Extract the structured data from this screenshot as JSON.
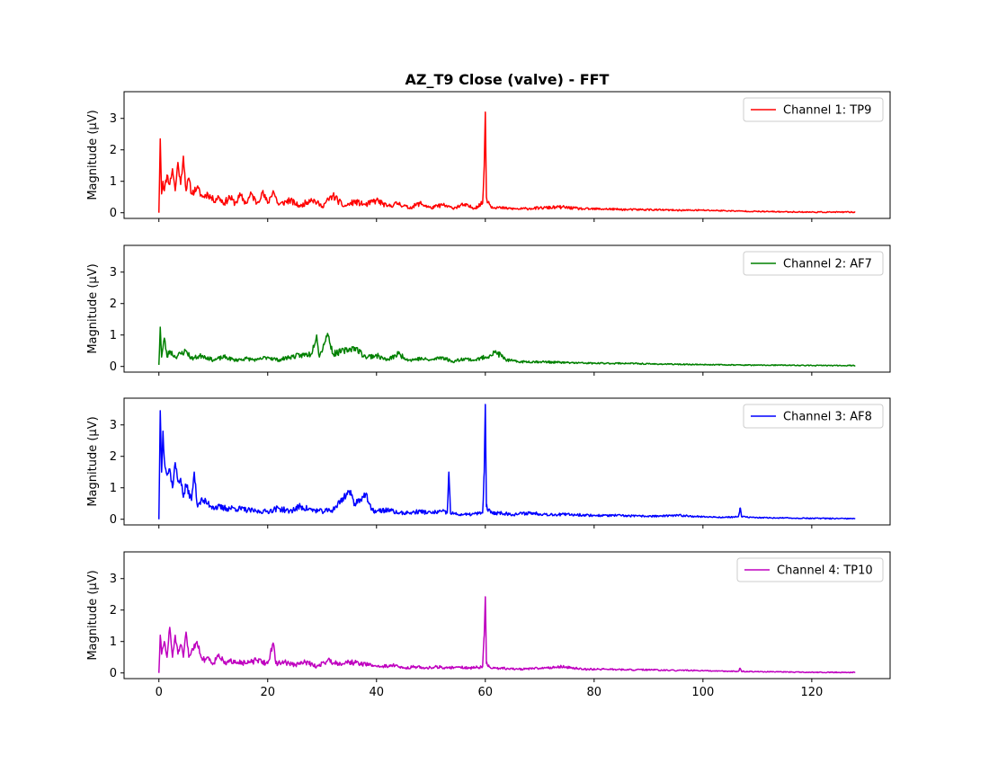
{
  "chart_data": {
    "type": "line",
    "title": "AZ_T9 Close (valve) - FFT",
    "xlabel": "",
    "ylabel": "Magnitude (μV)",
    "xlim": [
      -6.4,
      134.4
    ],
    "xticks": [
      0,
      20,
      40,
      60,
      80,
      100,
      120
    ],
    "ylim": [
      -0.18,
      3.85
    ],
    "yticks": [
      0,
      1,
      2,
      3
    ],
    "grid": false,
    "legend_placement": "upper right",
    "panels": [
      {
        "name": "Channel 1: TP9",
        "color": "#ff0000",
        "points": [
          [
            0,
            0.0
          ],
          [
            0.25,
            2.35
          ],
          [
            0.5,
            0.6
          ],
          [
            0.75,
            1.0
          ],
          [
            1,
            0.7
          ],
          [
            1.5,
            1.2
          ],
          [
            2,
            0.9
          ],
          [
            2.5,
            1.4
          ],
          [
            3,
            0.7
          ],
          [
            3.5,
            1.6
          ],
          [
            4,
            0.9
          ],
          [
            4.5,
            1.8
          ],
          [
            5,
            0.7
          ],
          [
            5.5,
            1.1
          ],
          [
            6,
            0.6
          ],
          [
            7,
            0.8
          ],
          [
            8,
            0.5
          ],
          [
            9,
            0.6
          ],
          [
            10,
            0.4
          ],
          [
            11,
            0.5
          ],
          [
            12,
            0.3
          ],
          [
            13,
            0.5
          ],
          [
            14,
            0.3
          ],
          [
            15,
            0.55
          ],
          [
            16,
            0.3
          ],
          [
            17,
            0.6
          ],
          [
            18,
            0.3
          ],
          [
            19,
            0.65
          ],
          [
            20,
            0.3
          ],
          [
            21,
            0.7
          ],
          [
            22,
            0.25
          ],
          [
            24,
            0.4
          ],
          [
            26,
            0.2
          ],
          [
            28,
            0.45
          ],
          [
            30,
            0.2
          ],
          [
            32,
            0.55
          ],
          [
            34,
            0.2
          ],
          [
            36,
            0.35
          ],
          [
            38,
            0.25
          ],
          [
            40,
            0.4
          ],
          [
            42,
            0.2
          ],
          [
            44,
            0.3
          ],
          [
            46,
            0.15
          ],
          [
            48,
            0.3
          ],
          [
            50,
            0.15
          ],
          [
            52,
            0.25
          ],
          [
            54,
            0.15
          ],
          [
            56,
            0.25
          ],
          [
            58,
            0.15
          ],
          [
            59.5,
            0.3
          ],
          [
            59.8,
            1.5
          ],
          [
            60,
            3.2
          ],
          [
            60.2,
            0.5
          ],
          [
            61,
            0.2
          ],
          [
            63,
            0.15
          ],
          [
            66,
            0.12
          ],
          [
            70,
            0.15
          ],
          [
            74,
            0.18
          ],
          [
            78,
            0.12
          ],
          [
            82,
            0.12
          ],
          [
            86,
            0.1
          ],
          [
            90,
            0.1
          ],
          [
            95,
            0.08
          ],
          [
            100,
            0.08
          ],
          [
            105,
            0.06
          ],
          [
            110,
            0.04
          ],
          [
            115,
            0.03
          ],
          [
            120,
            0.02
          ],
          [
            125,
            0.02
          ],
          [
            128,
            0.02
          ]
        ],
        "noise": 0.12,
        "seed": 11
      },
      {
        "name": "Channel 2: AF7",
        "color": "#008000",
        "points": [
          [
            0,
            0.05
          ],
          [
            0.25,
            1.25
          ],
          [
            0.5,
            0.3
          ],
          [
            1,
            0.9
          ],
          [
            1.5,
            0.3
          ],
          [
            2,
            0.5
          ],
          [
            3,
            0.3
          ],
          [
            4,
            0.4
          ],
          [
            5,
            0.5
          ],
          [
            6,
            0.25
          ],
          [
            8,
            0.35
          ],
          [
            10,
            0.2
          ],
          [
            12,
            0.3
          ],
          [
            14,
            0.2
          ],
          [
            16,
            0.25
          ],
          [
            18,
            0.2
          ],
          [
            20,
            0.3
          ],
          [
            22,
            0.2
          ],
          [
            24,
            0.3
          ],
          [
            26,
            0.35
          ],
          [
            28,
            0.4
          ],
          [
            29,
            1.0
          ],
          [
            29.5,
            0.3
          ],
          [
            31,
            1.05
          ],
          [
            32,
            0.4
          ],
          [
            34,
            0.5
          ],
          [
            36,
            0.6
          ],
          [
            38,
            0.3
          ],
          [
            40,
            0.35
          ],
          [
            42,
            0.2
          ],
          [
            44,
            0.4
          ],
          [
            46,
            0.2
          ],
          [
            48,
            0.25
          ],
          [
            50,
            0.2
          ],
          [
            52,
            0.3
          ],
          [
            54,
            0.15
          ],
          [
            56,
            0.25
          ],
          [
            58,
            0.2
          ],
          [
            60,
            0.3
          ],
          [
            62,
            0.45
          ],
          [
            64,
            0.2
          ],
          [
            66,
            0.15
          ],
          [
            70,
            0.15
          ],
          [
            75,
            0.12
          ],
          [
            80,
            0.1
          ],
          [
            86,
            0.1
          ],
          [
            90,
            0.08
          ],
          [
            95,
            0.07
          ],
          [
            100,
            0.06
          ],
          [
            105,
            0.05
          ],
          [
            110,
            0.04
          ],
          [
            115,
            0.04
          ],
          [
            120,
            0.03
          ],
          [
            125,
            0.03
          ],
          [
            128,
            0.03
          ]
        ],
        "noise": 0.1,
        "seed": 23
      },
      {
        "name": "Channel 3: AF8",
        "color": "#0000ff",
        "points": [
          [
            0,
            0.0
          ],
          [
            0.25,
            3.45
          ],
          [
            0.5,
            1.5
          ],
          [
            0.75,
            2.8
          ],
          [
            1,
            1.9
          ],
          [
            1.5,
            1.4
          ],
          [
            2,
            1.6
          ],
          [
            2.5,
            1.0
          ],
          [
            3,
            1.8
          ],
          [
            3.5,
            1.2
          ],
          [
            4,
            1.3
          ],
          [
            4.5,
            0.7
          ],
          [
            5,
            1.1
          ],
          [
            6,
            0.6
          ],
          [
            6.5,
            1.5
          ],
          [
            7,
            0.5
          ],
          [
            8,
            0.6
          ],
          [
            9,
            0.5
          ],
          [
            10,
            0.4
          ],
          [
            12,
            0.35
          ],
          [
            14,
            0.35
          ],
          [
            16,
            0.3
          ],
          [
            18,
            0.25
          ],
          [
            20,
            0.25
          ],
          [
            22,
            0.35
          ],
          [
            24,
            0.25
          ],
          [
            26,
            0.4
          ],
          [
            28,
            0.3
          ],
          [
            30,
            0.25
          ],
          [
            32,
            0.3
          ],
          [
            34,
            0.7
          ],
          [
            35,
            0.9
          ],
          [
            36,
            0.5
          ],
          [
            38,
            0.8
          ],
          [
            39,
            0.3
          ],
          [
            40,
            0.25
          ],
          [
            42,
            0.3
          ],
          [
            44,
            0.2
          ],
          [
            46,
            0.2
          ],
          [
            48,
            0.25
          ],
          [
            50,
            0.2
          ],
          [
            52,
            0.25
          ],
          [
            53,
            0.2
          ],
          [
            53.3,
            1.5
          ],
          [
            53.6,
            0.2
          ],
          [
            55,
            0.15
          ],
          [
            57,
            0.15
          ],
          [
            59.5,
            0.2
          ],
          [
            59.8,
            1.5
          ],
          [
            60,
            3.65
          ],
          [
            60.2,
            0.4
          ],
          [
            61,
            0.2
          ],
          [
            63,
            0.2
          ],
          [
            65,
            0.15
          ],
          [
            68,
            0.2
          ],
          [
            72,
            0.15
          ],
          [
            76,
            0.15
          ],
          [
            80,
            0.12
          ],
          [
            84,
            0.12
          ],
          [
            88,
            0.1
          ],
          [
            92,
            0.1
          ],
          [
            96,
            0.12
          ],
          [
            100,
            0.08
          ],
          [
            104,
            0.06
          ],
          [
            106.5,
            0.08
          ],
          [
            106.8,
            0.35
          ],
          [
            107.1,
            0.08
          ],
          [
            110,
            0.05
          ],
          [
            115,
            0.04
          ],
          [
            120,
            0.03
          ],
          [
            125,
            0.02
          ],
          [
            128,
            0.02
          ]
        ],
        "noise": 0.12,
        "seed": 37
      },
      {
        "name": "Channel 4: TP10",
        "color": "#bf00bf",
        "points": [
          [
            0,
            0.0
          ],
          [
            0.25,
            1.2
          ],
          [
            0.5,
            0.6
          ],
          [
            1,
            1.0
          ],
          [
            1.5,
            0.5
          ],
          [
            2,
            1.45
          ],
          [
            2.5,
            0.5
          ],
          [
            3,
            1.2
          ],
          [
            3.5,
            0.6
          ],
          [
            4,
            0.9
          ],
          [
            4.5,
            0.5
          ],
          [
            5,
            1.3
          ],
          [
            5.5,
            0.5
          ],
          [
            6,
            0.7
          ],
          [
            7,
            1.0
          ],
          [
            8,
            0.4
          ],
          [
            9,
            0.5
          ],
          [
            10,
            0.3
          ],
          [
            11,
            0.6
          ],
          [
            12,
            0.3
          ],
          [
            14,
            0.4
          ],
          [
            16,
            0.3
          ],
          [
            18,
            0.4
          ],
          [
            20,
            0.3
          ],
          [
            21,
            0.95
          ],
          [
            21.5,
            0.3
          ],
          [
            23,
            0.35
          ],
          [
            25,
            0.25
          ],
          [
            27,
            0.35
          ],
          [
            29,
            0.2
          ],
          [
            31,
            0.4
          ],
          [
            33,
            0.3
          ],
          [
            35,
            0.35
          ],
          [
            37,
            0.3
          ],
          [
            39,
            0.25
          ],
          [
            41,
            0.2
          ],
          [
            43,
            0.25
          ],
          [
            45,
            0.15
          ],
          [
            47,
            0.2
          ],
          [
            49,
            0.15
          ],
          [
            51,
            0.2
          ],
          [
            53,
            0.15
          ],
          [
            55,
            0.2
          ],
          [
            57,
            0.15
          ],
          [
            59.5,
            0.2
          ],
          [
            59.8,
            1.2
          ],
          [
            60,
            2.42
          ],
          [
            60.2,
            0.3
          ],
          [
            61,
            0.15
          ],
          [
            63,
            0.15
          ],
          [
            66,
            0.12
          ],
          [
            70,
            0.15
          ],
          [
            74,
            0.2
          ],
          [
            78,
            0.12
          ],
          [
            82,
            0.12
          ],
          [
            86,
            0.1
          ],
          [
            90,
            0.1
          ],
          [
            94,
            0.08
          ],
          [
            98,
            0.08
          ],
          [
            102,
            0.06
          ],
          [
            106.5,
            0.05
          ],
          [
            106.8,
            0.15
          ],
          [
            107.1,
            0.05
          ],
          [
            110,
            0.04
          ],
          [
            115,
            0.03
          ],
          [
            120,
            0.02
          ],
          [
            125,
            0.02
          ],
          [
            128,
            0.02
          ]
        ],
        "noise": 0.1,
        "seed": 51
      }
    ]
  }
}
